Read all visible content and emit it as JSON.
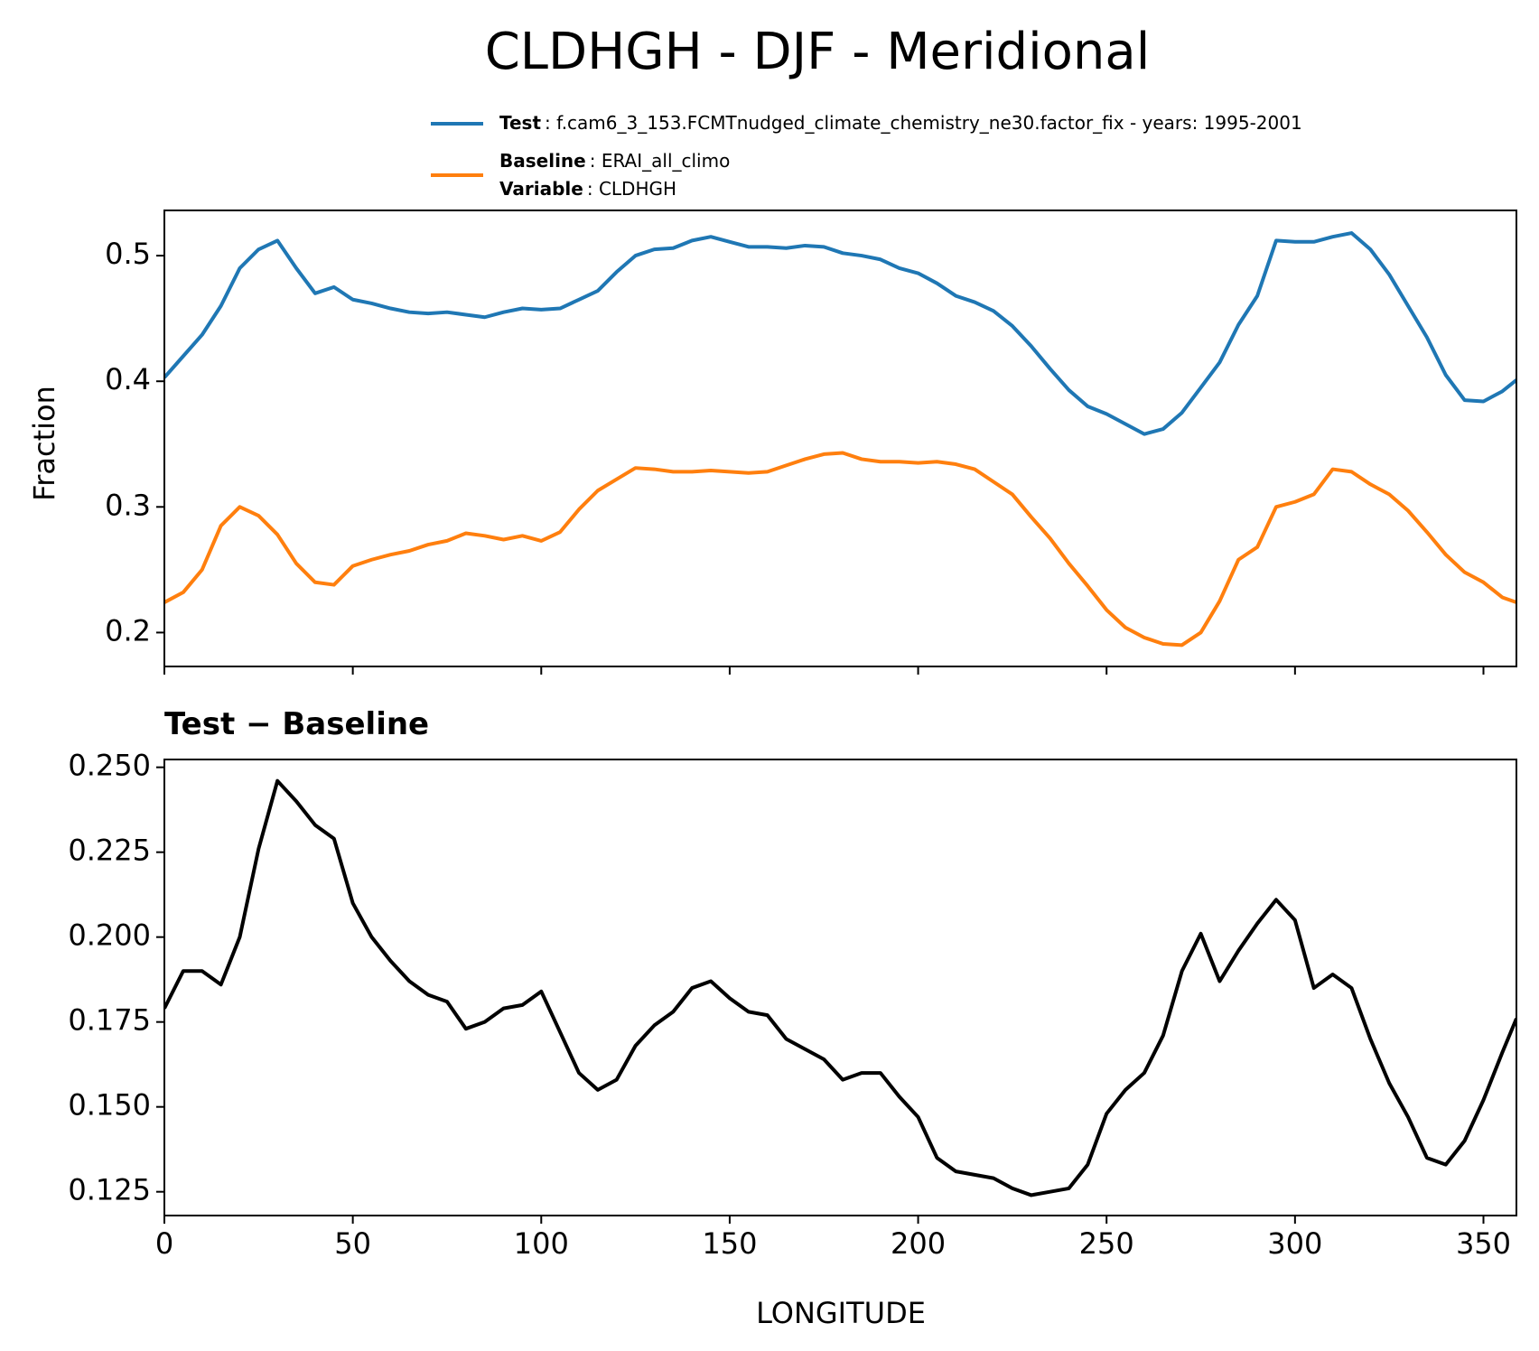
{
  "chart_data": [
    {
      "type": "line",
      "title": "CLDHGH - DJF - Meridional",
      "ylabel": "Fraction",
      "x": [
        0,
        5,
        10,
        15,
        20,
        25,
        30,
        35,
        40,
        45,
        50,
        55,
        60,
        65,
        70,
        75,
        80,
        85,
        90,
        95,
        100,
        105,
        110,
        115,
        120,
        125,
        130,
        135,
        140,
        145,
        150,
        155,
        160,
        165,
        170,
        175,
        180,
        185,
        190,
        195,
        200,
        205,
        210,
        215,
        220,
        225,
        230,
        235,
        240,
        245,
        250,
        255,
        260,
        265,
        270,
        275,
        280,
        285,
        290,
        295,
        300,
        305,
        310,
        315,
        320,
        325,
        330,
        335,
        340,
        345,
        350,
        355,
        358.75
      ],
      "series": [
        {
          "name": "Test",
          "description": ": f.cam6_3_153.FCMTnudged_climate_chemistry_ne30.factor_fix - years: 1995-2001",
          "color": "#1f77b4",
          "values": [
            0.403,
            0.42,
            0.437,
            0.46,
            0.49,
            0.505,
            0.512,
            0.49,
            0.47,
            0.475,
            0.465,
            0.462,
            0.458,
            0.455,
            0.454,
            0.455,
            0.453,
            0.451,
            0.455,
            0.458,
            0.457,
            0.458,
            0.465,
            0.472,
            0.487,
            0.5,
            0.505,
            0.506,
            0.512,
            0.515,
            0.511,
            0.507,
            0.507,
            0.506,
            0.508,
            0.507,
            0.502,
            0.5,
            0.497,
            0.49,
            0.486,
            0.478,
            0.468,
            0.463,
            0.456,
            0.444,
            0.428,
            0.41,
            0.393,
            0.38,
            0.374,
            0.366,
            0.358,
            0.362,
            0.375,
            0.395,
            0.415,
            0.445,
            0.468,
            0.512,
            0.511,
            0.511,
            0.515,
            0.518,
            0.505,
            0.485,
            0.46,
            0.435,
            0.405,
            0.385,
            0.384,
            0.392,
            0.401
          ]
        },
        {
          "name": "Baseline",
          "description": ": ERAI_all_climo",
          "color": "#ff7f0e",
          "values": [
            0.224,
            0.232,
            0.25,
            0.285,
            0.3,
            0.293,
            0.278,
            0.255,
            0.24,
            0.238,
            0.253,
            0.258,
            0.262,
            0.265,
            0.27,
            0.273,
            0.279,
            0.277,
            0.274,
            0.277,
            0.273,
            0.28,
            0.298,
            0.313,
            0.322,
            0.331,
            0.33,
            0.328,
            0.328,
            0.329,
            0.328,
            0.327,
            0.328,
            0.333,
            0.338,
            0.342,
            0.343,
            0.338,
            0.336,
            0.336,
            0.335,
            0.336,
            0.334,
            0.33,
            0.32,
            0.31,
            0.292,
            0.275,
            0.255,
            0.237,
            0.218,
            0.204,
            0.196,
            0.191,
            0.19,
            0.2,
            0.225,
            0.258,
            0.268,
            0.3,
            0.304,
            0.31,
            0.33,
            0.328,
            0.318,
            0.31,
            0.297,
            0.28,
            0.262,
            0.248,
            0.24,
            0.228,
            0.224
          ]
        }
      ],
      "legend_note": {
        "name": "Variable",
        "description": ": CLDHGH"
      },
      "xlim": [
        0,
        358.75
      ],
      "xticks": [
        0,
        50,
        100,
        150,
        200,
        250,
        300,
        350
      ],
      "ylim": [
        0.173,
        0.536
      ],
      "yticks": [
        0.2,
        0.3,
        0.4,
        0.5
      ]
    },
    {
      "type": "line",
      "title": "Test − Baseline",
      "xlabel": "LONGITUDE",
      "x": [
        0,
        5,
        10,
        15,
        20,
        25,
        30,
        35,
        40,
        45,
        50,
        55,
        60,
        65,
        70,
        75,
        80,
        85,
        90,
        95,
        100,
        105,
        110,
        115,
        120,
        125,
        130,
        135,
        140,
        145,
        150,
        155,
        160,
        165,
        170,
        175,
        180,
        185,
        190,
        195,
        200,
        205,
        210,
        215,
        220,
        225,
        230,
        235,
        240,
        245,
        250,
        255,
        260,
        265,
        270,
        275,
        280,
        285,
        290,
        295,
        300,
        305,
        310,
        315,
        320,
        325,
        330,
        335,
        340,
        345,
        350,
        355,
        358.75
      ],
      "color": "#000000",
      "values": [
        0.179,
        0.19,
        0.19,
        0.186,
        0.2,
        0.226,
        0.246,
        0.24,
        0.233,
        0.229,
        0.21,
        0.2,
        0.193,
        0.187,
        0.183,
        0.181,
        0.173,
        0.175,
        0.179,
        0.18,
        0.184,
        0.172,
        0.16,
        0.155,
        0.158,
        0.168,
        0.174,
        0.178,
        0.185,
        0.187,
        0.182,
        0.178,
        0.177,
        0.17,
        0.167,
        0.164,
        0.158,
        0.16,
        0.16,
        0.153,
        0.147,
        0.135,
        0.131,
        0.13,
        0.129,
        0.126,
        0.124,
        0.125,
        0.126,
        0.133,
        0.148,
        0.155,
        0.16,
        0.171,
        0.19,
        0.201,
        0.187,
        0.196,
        0.204,
        0.211,
        0.205,
        0.185,
        0.189,
        0.185,
        0.17,
        0.157,
        0.147,
        0.135,
        0.133,
        0.14,
        0.152,
        0.166,
        0.176
      ],
      "xlim": [
        0,
        358.75
      ],
      "xticks": [
        0,
        50,
        100,
        150,
        200,
        250,
        300,
        350
      ],
      "ylim": [
        0.118,
        0.2523
      ],
      "yticks": [
        {
          "value": 0.25,
          "label": "0.250"
        },
        0.225,
        {
          "value": 0.2,
          "label": "0.200"
        },
        0.175,
        {
          "value": 0.15,
          "label": "0.150"
        },
        0.125
      ]
    }
  ]
}
